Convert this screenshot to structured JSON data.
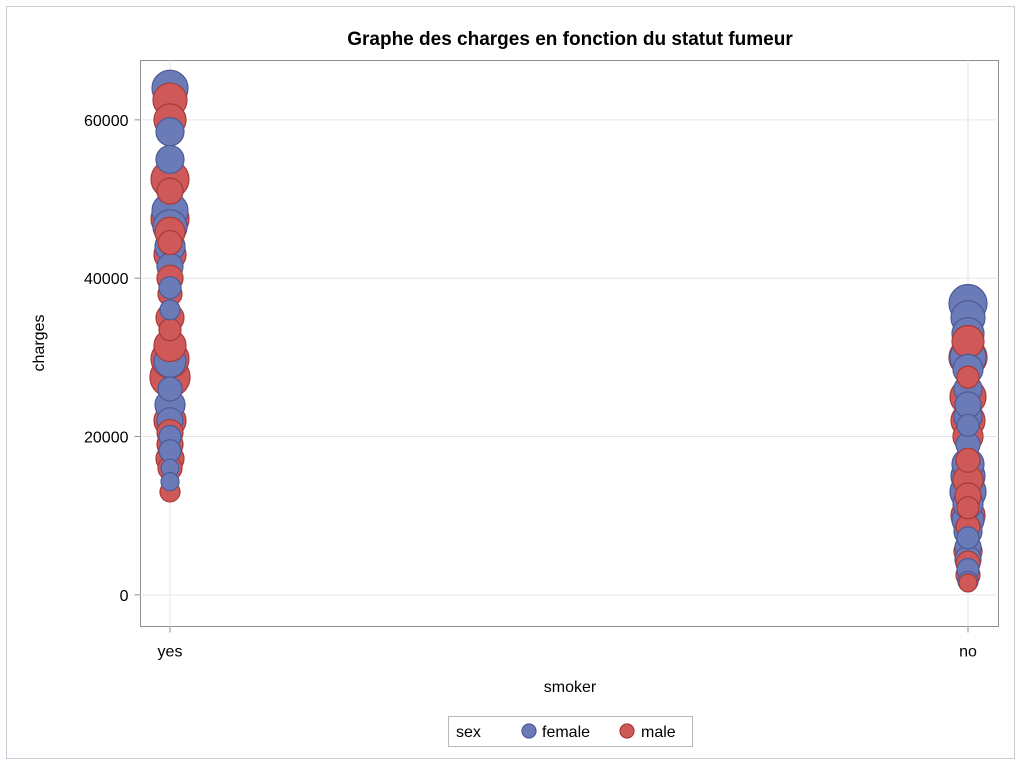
{
  "chart_data": {
    "type": "scatter",
    "title": "Graphe des charges en fonction du statut fumeur",
    "xlabel": "smoker",
    "ylabel": "charges",
    "categories": [
      "yes",
      "no"
    ],
    "ylim": [
      -4000,
      67500
    ],
    "yticks": [
      0,
      20000,
      40000,
      60000
    ],
    "ytick_labels": [
      "0",
      "20000",
      "40000",
      "60000"
    ],
    "grid": true,
    "legend": {
      "title": "sex",
      "position": "bottom-center"
    },
    "marker_size_note": "bubble radius varies per point",
    "series": [
      {
        "name": "female",
        "color": "#6b7bb8",
        "stroke": "#4c5a96",
        "points": [
          {
            "x": "yes",
            "y": 64000,
            "r": 18
          },
          {
            "x": "yes",
            "y": 58500,
            "r": 14
          },
          {
            "x": "yes",
            "y": 55000,
            "r": 14
          },
          {
            "x": "yes",
            "y": 48500,
            "r": 18
          },
          {
            "x": "yes",
            "y": 46500,
            "r": 17
          },
          {
            "x": "yes",
            "y": 44000,
            "r": 15
          },
          {
            "x": "yes",
            "y": 41500,
            "r": 13
          },
          {
            "x": "yes",
            "y": 38800,
            "r": 11
          },
          {
            "x": "yes",
            "y": 36000,
            "r": 10
          },
          {
            "x": "yes",
            "y": 29500,
            "r": 16
          },
          {
            "x": "yes",
            "y": 26000,
            "r": 12
          },
          {
            "x": "yes",
            "y": 24000,
            "r": 15
          },
          {
            "x": "yes",
            "y": 22000,
            "r": 13
          },
          {
            "x": "yes",
            "y": 20000,
            "r": 11
          },
          {
            "x": "yes",
            "y": 18200,
            "r": 11
          },
          {
            "x": "yes",
            "y": 16000,
            "r": 9
          },
          {
            "x": "yes",
            "y": 14300,
            "r": 9
          },
          {
            "x": "no",
            "y": 36800,
            "r": 19
          },
          {
            "x": "no",
            "y": 35000,
            "r": 17
          },
          {
            "x": "no",
            "y": 33000,
            "r": 16
          },
          {
            "x": "no",
            "y": 30000,
            "r": 18
          },
          {
            "x": "no",
            "y": 28500,
            "r": 15
          },
          {
            "x": "no",
            "y": 26000,
            "r": 14
          },
          {
            "x": "no",
            "y": 24000,
            "r": 13
          },
          {
            "x": "no",
            "y": 22500,
            "r": 14
          },
          {
            "x": "no",
            "y": 21400,
            "r": 11
          },
          {
            "x": "no",
            "y": 19000,
            "r": 12
          },
          {
            "x": "no",
            "y": 16500,
            "r": 16
          },
          {
            "x": "no",
            "y": 15000,
            "r": 17
          },
          {
            "x": "no",
            "y": 13000,
            "r": 18
          },
          {
            "x": "no",
            "y": 11500,
            "r": 15
          },
          {
            "x": "no",
            "y": 9500,
            "r": 16
          },
          {
            "x": "no",
            "y": 8000,
            "r": 14
          },
          {
            "x": "no",
            "y": 7200,
            "r": 11
          },
          {
            "x": "no",
            "y": 6000,
            "r": 13
          },
          {
            "x": "no",
            "y": 4500,
            "r": 13
          },
          {
            "x": "no",
            "y": 3200,
            "r": 11
          },
          {
            "x": "no",
            "y": 1700,
            "r": 10
          }
        ]
      },
      {
        "name": "male",
        "color": "#cf5959",
        "stroke": "#a53a3a",
        "points": [
          {
            "x": "yes",
            "y": 62500,
            "r": 17
          },
          {
            "x": "yes",
            "y": 60000,
            "r": 16
          },
          {
            "x": "yes",
            "y": 52500,
            "r": 19
          },
          {
            "x": "yes",
            "y": 51000,
            "r": 13
          },
          {
            "x": "yes",
            "y": 47500,
            "r": 19
          },
          {
            "x": "yes",
            "y": 45800,
            "r": 15
          },
          {
            "x": "yes",
            "y": 44500,
            "r": 12
          },
          {
            "x": "yes",
            "y": 43000,
            "r": 16
          },
          {
            "x": "yes",
            "y": 40000,
            "r": 13
          },
          {
            "x": "yes",
            "y": 38000,
            "r": 12
          },
          {
            "x": "yes",
            "y": 35000,
            "r": 14
          },
          {
            "x": "yes",
            "y": 33500,
            "r": 11
          },
          {
            "x": "yes",
            "y": 31500,
            "r": 16
          },
          {
            "x": "yes",
            "y": 29800,
            "r": 19
          },
          {
            "x": "yes",
            "y": 27500,
            "r": 20
          },
          {
            "x": "yes",
            "y": 22000,
            "r": 16
          },
          {
            "x": "yes",
            "y": 20500,
            "r": 13
          },
          {
            "x": "yes",
            "y": 19000,
            "r": 13
          },
          {
            "x": "yes",
            "y": 17200,
            "r": 14
          },
          {
            "x": "yes",
            "y": 16000,
            "r": 12
          },
          {
            "x": "yes",
            "y": 13000,
            "r": 10
          },
          {
            "x": "no",
            "y": 32000,
            "r": 16
          },
          {
            "x": "no",
            "y": 30000,
            "r": 19
          },
          {
            "x": "no",
            "y": 27500,
            "r": 11
          },
          {
            "x": "no",
            "y": 25000,
            "r": 18
          },
          {
            "x": "no",
            "y": 22000,
            "r": 17
          },
          {
            "x": "no",
            "y": 20000,
            "r": 15
          },
          {
            "x": "no",
            "y": 17000,
            "r": 12
          },
          {
            "x": "no",
            "y": 14500,
            "r": 15
          },
          {
            "x": "no",
            "y": 12500,
            "r": 13
          },
          {
            "x": "no",
            "y": 11000,
            "r": 11
          },
          {
            "x": "no",
            "y": 10000,
            "r": 17
          },
          {
            "x": "no",
            "y": 8600,
            "r": 12
          },
          {
            "x": "no",
            "y": 5500,
            "r": 14
          },
          {
            "x": "no",
            "y": 4000,
            "r": 12
          },
          {
            "x": "no",
            "y": 2500,
            "r": 12
          },
          {
            "x": "no",
            "y": 1500,
            "r": 9
          }
        ]
      }
    ]
  }
}
